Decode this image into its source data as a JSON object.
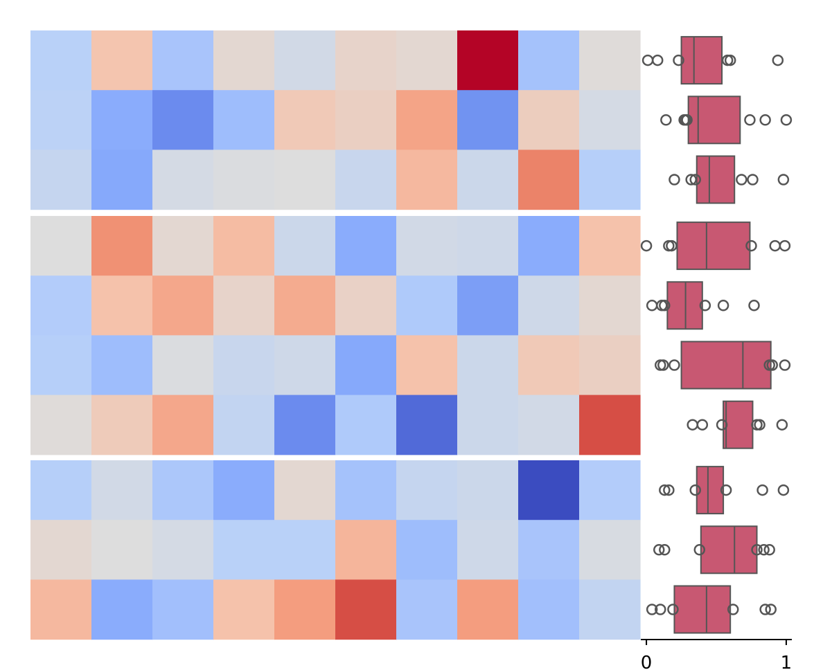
{
  "chart_data": [
    {
      "type": "heatmap",
      "groups": [
        {
          "rows": [
            [
              0.38,
              0.62,
              0.33,
              0.53,
              0.46,
              0.55,
              0.53,
              1.0,
              0.32,
              0.51
            ],
            [
              0.39,
              0.24,
              0.15,
              0.3,
              0.6,
              0.57,
              0.72,
              0.17,
              0.58,
              0.47
            ],
            [
              0.42,
              0.23,
              0.47,
              0.49,
              0.5,
              0.43,
              0.66,
              0.44,
              0.8,
              0.37
            ]
          ]
        },
        {
          "rows": [
            [
              0.5,
              0.77,
              0.53,
              0.65,
              0.44,
              0.24,
              0.46,
              0.45,
              0.24,
              0.63
            ],
            [
              0.36,
              0.63,
              0.71,
              0.55,
              0.7,
              0.56,
              0.35,
              0.2,
              0.45,
              0.53
            ],
            [
              0.37,
              0.3,
              0.49,
              0.43,
              0.45,
              0.23,
              0.63,
              0.44,
              0.6,
              0.57
            ],
            [
              0.51,
              0.59,
              0.71,
              0.41,
              0.15,
              0.35,
              0.07,
              0.44,
              0.46,
              0.9
            ]
          ]
        },
        {
          "rows": [
            [
              0.37,
              0.46,
              0.34,
              0.24,
              0.53,
              0.32,
              0.42,
              0.44,
              0.0,
              0.36
            ],
            [
              0.53,
              0.5,
              0.47,
              0.38,
              0.38,
              0.67,
              0.3,
              0.45,
              0.33,
              0.48
            ],
            [
              0.66,
              0.24,
              0.31,
              0.63,
              0.74,
              0.9,
              0.33,
              0.74,
              0.31,
              0.41
            ]
          ]
        }
      ]
    },
    {
      "type": "box",
      "orientation": "horizontal",
      "xlim": [
        -0.04,
        1.04
      ],
      "xticks": [
        "0",
        "1"
      ],
      "color": "#c85872",
      "edge_color": "#555555",
      "rows": [
        {
          "q1": 0.25,
          "median": 0.34,
          "q3": 0.54,
          "fliers": [
            0.01,
            0.08,
            0.23,
            0.58,
            0.6,
            0.94
          ]
        },
        {
          "q1": 0.3,
          "median": 0.37,
          "q3": 0.67,
          "fliers": [
            0.14,
            0.27,
            0.28,
            0.29,
            0.74,
            0.85,
            1.0
          ]
        },
        {
          "q1": 0.36,
          "median": 0.45,
          "q3": 0.63,
          "fliers": [
            0.2,
            0.32,
            0.35,
            0.68,
            0.76,
            0.98
          ]
        },
        {
          "q1": 0.22,
          "median": 0.43,
          "q3": 0.74,
          "fliers": [
            0.0,
            0.16,
            0.18,
            0.75,
            0.92,
            0.99
          ]
        },
        {
          "q1": 0.15,
          "median": 0.28,
          "q3": 0.4,
          "fliers": [
            0.04,
            0.11,
            0.13,
            0.42,
            0.55,
            0.77
          ]
        },
        {
          "q1": 0.25,
          "median": 0.69,
          "q3": 0.89,
          "fliers": [
            0.1,
            0.12,
            0.2,
            0.88,
            0.9,
            0.99
          ]
        },
        {
          "q1": 0.55,
          "median": 0.57,
          "q3": 0.76,
          "fliers": [
            0.33,
            0.4,
            0.54,
            0.79,
            0.81,
            0.97
          ]
        },
        {
          "q1": 0.36,
          "median": 0.44,
          "q3": 0.55,
          "fliers": [
            0.13,
            0.16,
            0.35,
            0.57,
            0.83,
            0.98
          ]
        },
        {
          "q1": 0.39,
          "median": 0.63,
          "q3": 0.79,
          "fliers": [
            0.09,
            0.13,
            0.38,
            0.79,
            0.84,
            0.88
          ]
        },
        {
          "q1": 0.2,
          "median": 0.43,
          "q3": 0.6,
          "fliers": [
            0.04,
            0.1,
            0.19,
            0.62,
            0.85,
            0.89
          ]
        }
      ]
    }
  ]
}
